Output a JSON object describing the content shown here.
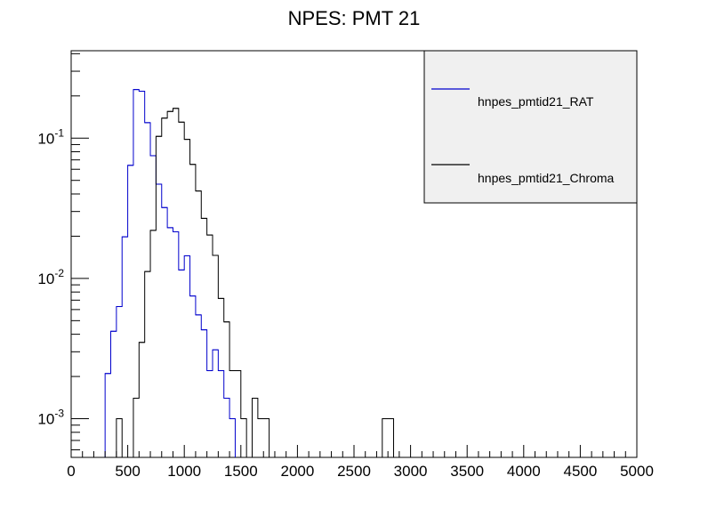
{
  "chart_data": {
    "type": "histogram",
    "title": "NPES: PMT 21",
    "xlim": [
      0,
      5000
    ],
    "ylim": [
      0.00053,
      0.42
    ],
    "y_scale": "log",
    "bin_width": 50,
    "x_ticks": [
      0,
      500,
      1000,
      1500,
      2000,
      2500,
      3000,
      3500,
      4000,
      4500,
      5000
    ],
    "x_tick_labels": [
      "0",
      "500",
      "1000",
      "1500",
      "2000",
      "2500",
      "3000",
      "3500",
      "4000",
      "4500",
      "5000"
    ],
    "y_tick_labels": [
      {
        "value": 0.001,
        "base": "10",
        "exp": "-3"
      },
      {
        "value": 0.01,
        "base": "10",
        "exp": "-2"
      },
      {
        "value": 0.1,
        "base": "10",
        "exp": "-1"
      }
    ],
    "legend_position": "top-right",
    "series": [
      {
        "name": "hnpes_pmtid21_RAT",
        "color": "#0000cc",
        "bins": [
          {
            "x": 300,
            "y": 0.0021
          },
          {
            "x": 350,
            "y": 0.0042
          },
          {
            "x": 400,
            "y": 0.0063
          },
          {
            "x": 450,
            "y": 0.0198
          },
          {
            "x": 500,
            "y": 0.064
          },
          {
            "x": 550,
            "y": 0.222
          },
          {
            "x": 600,
            "y": 0.216
          },
          {
            "x": 650,
            "y": 0.129
          },
          {
            "x": 700,
            "y": 0.075
          },
          {
            "x": 750,
            "y": 0.047
          },
          {
            "x": 800,
            "y": 0.032
          },
          {
            "x": 850,
            "y": 0.023
          },
          {
            "x": 900,
            "y": 0.0215
          },
          {
            "x": 950,
            "y": 0.0115
          },
          {
            "x": 1000,
            "y": 0.0145
          },
          {
            "x": 1050,
            "y": 0.0075
          },
          {
            "x": 1100,
            "y": 0.0055
          },
          {
            "x": 1150,
            "y": 0.0043
          },
          {
            "x": 1200,
            "y": 0.0022
          },
          {
            "x": 1250,
            "y": 0.0031
          },
          {
            "x": 1300,
            "y": 0.0022
          },
          {
            "x": 1350,
            "y": 0.0014
          },
          {
            "x": 1400,
            "y": 0.001
          }
        ]
      },
      {
        "name": "hnpes_pmtid21_Chroma",
        "color": "#000000",
        "bins": [
          {
            "x": 400,
            "y": 0.001
          },
          {
            "x": 550,
            "y": 0.0014
          },
          {
            "x": 600,
            "y": 0.0035
          },
          {
            "x": 650,
            "y": 0.0112
          },
          {
            "x": 700,
            "y": 0.022
          },
          {
            "x": 750,
            "y": 0.103
          },
          {
            "x": 800,
            "y": 0.139
          },
          {
            "x": 850,
            "y": 0.155
          },
          {
            "x": 900,
            "y": 0.163
          },
          {
            "x": 950,
            "y": 0.13
          },
          {
            "x": 1000,
            "y": 0.098
          },
          {
            "x": 1050,
            "y": 0.065
          },
          {
            "x": 1100,
            "y": 0.042
          },
          {
            "x": 1150,
            "y": 0.0268
          },
          {
            "x": 1200,
            "y": 0.0204
          },
          {
            "x": 1250,
            "y": 0.0146
          },
          {
            "x": 1300,
            "y": 0.0072
          },
          {
            "x": 1350,
            "y": 0.0049
          },
          {
            "x": 1400,
            "y": 0.0022
          },
          {
            "x": 1450,
            "y": 0.0022
          },
          {
            "x": 1500,
            "y": 0.001
          },
          {
            "x": 1600,
            "y": 0.0014
          },
          {
            "x": 1650,
            "y": 0.001
          },
          {
            "x": 1700,
            "y": 0.001
          },
          {
            "x": 2750,
            "y": 0.001
          },
          {
            "x": 2800,
            "y": 0.001
          }
        ]
      }
    ]
  }
}
